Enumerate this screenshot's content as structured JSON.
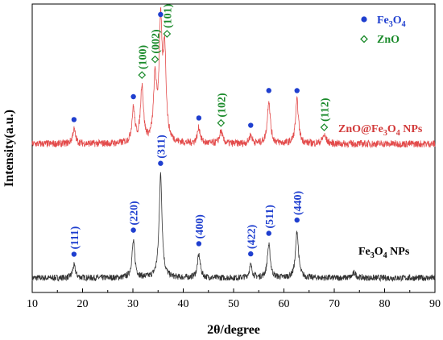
{
  "chart_data": {
    "type": "line",
    "xlabel": "2θ/degree",
    "ylabel": "Intensity(a.u.)",
    "xlim": [
      10,
      90
    ],
    "xticks": [
      10,
      20,
      30,
      40,
      50,
      60,
      70,
      80,
      90
    ],
    "grid": false,
    "legend_position": "top-right",
    "legend": [
      {
        "label": "Fe3O4",
        "marker": "filled-circle",
        "color": "#1f3fcf"
      },
      {
        "label": "ZnO",
        "marker": "open-diamond",
        "color": "#1a8a2a"
      }
    ],
    "series": [
      {
        "name": "Fe3O4 NPs",
        "color": "#333333",
        "baseline": 0.0,
        "noise": 0.03,
        "peaks": [
          {
            "x": 18.3,
            "h": 0.12,
            "w": 0.35
          },
          {
            "x": 30.1,
            "h": 0.35,
            "w": 0.35
          },
          {
            "x": 35.5,
            "h": 1.0,
            "w": 0.35
          },
          {
            "x": 43.1,
            "h": 0.22,
            "w": 0.35
          },
          {
            "x": 53.4,
            "h": 0.12,
            "w": 0.35
          },
          {
            "x": 57.0,
            "h": 0.32,
            "w": 0.35
          },
          {
            "x": 62.6,
            "h": 0.45,
            "w": 0.35
          },
          {
            "x": 74.0,
            "h": 0.05,
            "w": 0.4
          }
        ],
        "label": "Fe3O4 NPs",
        "label_parts": {
          "pre": "Fe",
          "sub1": "3",
          "mid": "O",
          "sub2": "4",
          "post": " NPs"
        }
      },
      {
        "name": "ZnO@Fe3O4 NPs",
        "color": "#e34b4b",
        "baseline": 1.3,
        "noise": 0.035,
        "peaks": [
          {
            "x": 18.3,
            "h": 0.14,
            "w": 0.35
          },
          {
            "x": 30.1,
            "h": 0.33,
            "w": 0.35
          },
          {
            "x": 31.8,
            "h": 0.55,
            "w": 0.35
          },
          {
            "x": 34.4,
            "h": 0.6,
            "w": 0.35
          },
          {
            "x": 35.5,
            "h": 1.1,
            "w": 0.35
          },
          {
            "x": 36.3,
            "h": 0.85,
            "w": 0.35
          },
          {
            "x": 43.1,
            "h": 0.15,
            "w": 0.35
          },
          {
            "x": 47.5,
            "h": 0.12,
            "w": 0.35
          },
          {
            "x": 53.4,
            "h": 0.08,
            "w": 0.35
          },
          {
            "x": 57.0,
            "h": 0.42,
            "w": 0.35
          },
          {
            "x": 62.6,
            "h": 0.42,
            "w": 0.35
          },
          {
            "x": 68.0,
            "h": 0.08,
            "w": 0.45
          }
        ],
        "label": "ZnO@Fe3O4 NPs",
        "label_parts": {
          "pre": "ZnO@Fe",
          "sub1": "3",
          "mid": "O",
          "sub2": "4",
          "post": " NPs"
        }
      }
    ],
    "annotations": {
      "fe3o4_hkl": [
        {
          "x": 18.3,
          "label": "(111)"
        },
        {
          "x": 30.1,
          "label": "(220)"
        },
        {
          "x": 35.5,
          "label": "(311)"
        },
        {
          "x": 43.1,
          "label": "(400)"
        },
        {
          "x": 53.4,
          "label": "(422)"
        },
        {
          "x": 57.0,
          "label": "(511)"
        },
        {
          "x": 62.6,
          "label": "(440)"
        }
      ],
      "zno_hkl": [
        {
          "x": 31.8,
          "label": "(100)"
        },
        {
          "x": 34.4,
          "label": "(002)"
        },
        {
          "x": 36.3,
          "label": "(101)"
        },
        {
          "x": 47.5,
          "label": "(102)"
        },
        {
          "x": 68.0,
          "label": "(112)"
        }
      ],
      "fe3o4_markers_on_composite": [
        18.3,
        30.1,
        35.5,
        43.1,
        53.4,
        57.0,
        62.6
      ]
    }
  }
}
